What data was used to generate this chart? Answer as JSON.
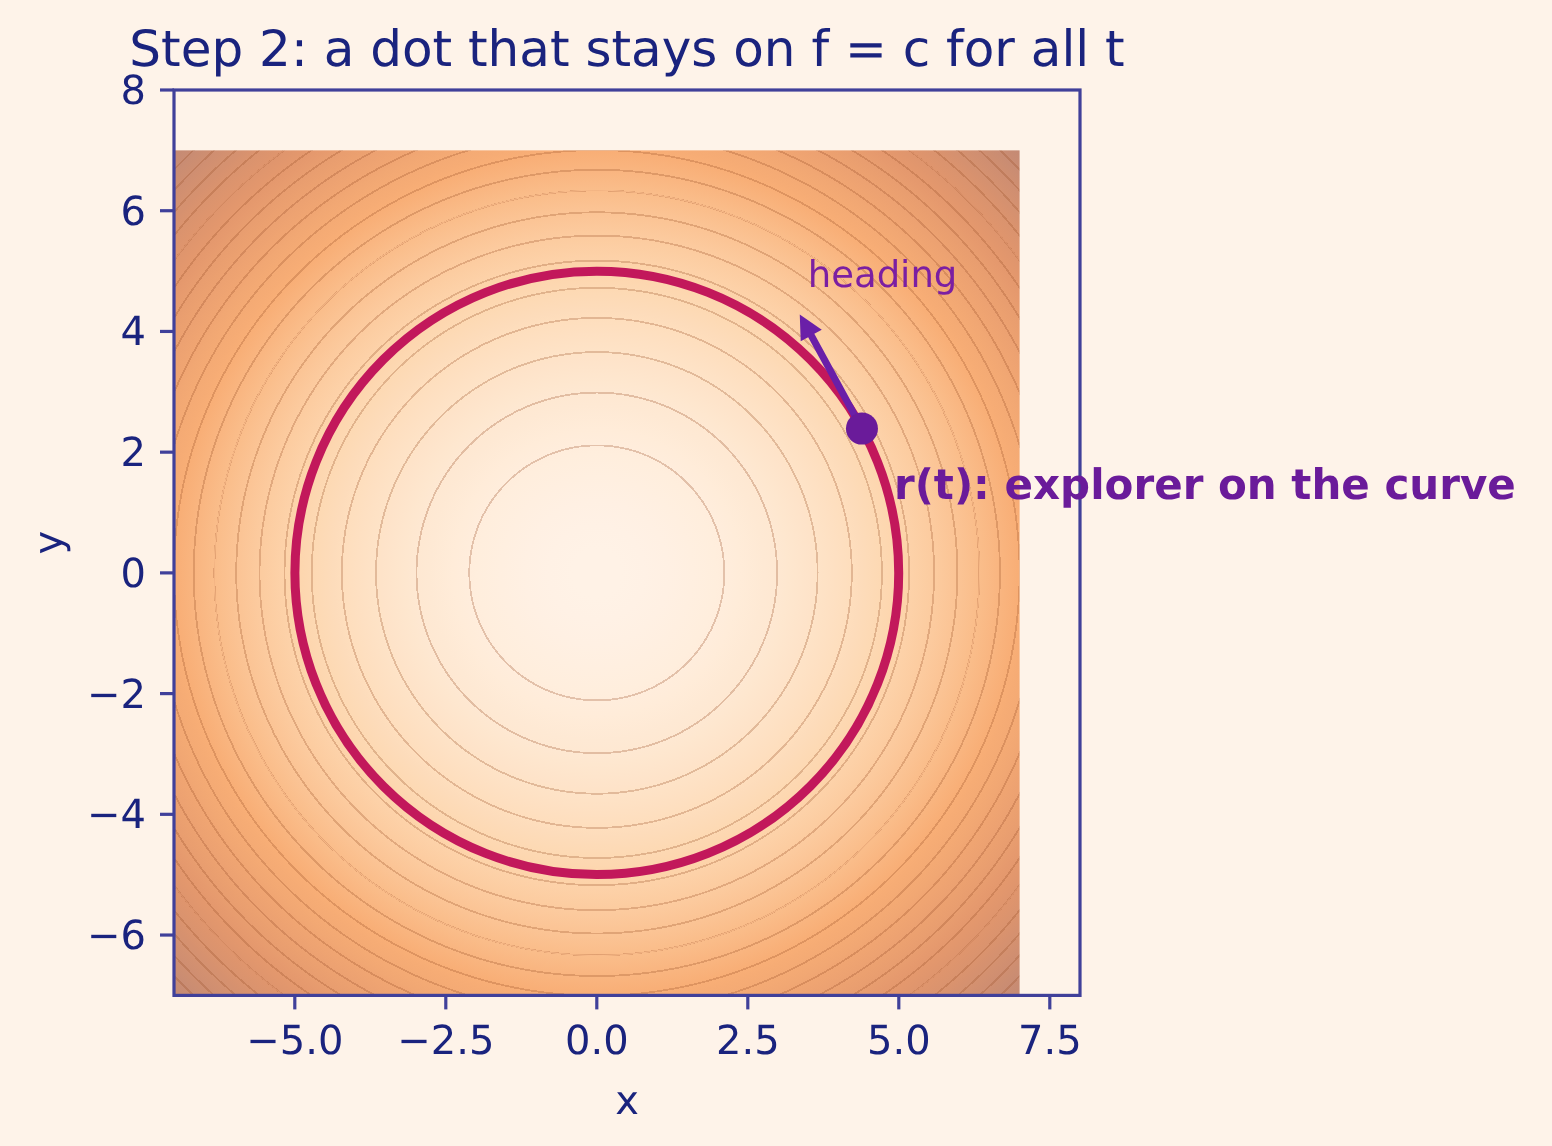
{
  "chart_data": {
    "type": "scatter",
    "title": "Step 2: a dot that stays on f = c for all t",
    "xlabel": "x",
    "ylabel": "y",
    "xlim": [
      -7,
      8
    ],
    "ylim": [
      -7,
      8
    ],
    "xticks": [
      {
        "value": -5,
        "label": "−5.0"
      },
      {
        "value": -2.5,
        "label": "−2.5"
      },
      {
        "value": 0,
        "label": "0.0"
      },
      {
        "value": 2.5,
        "label": "2.5"
      },
      {
        "value": 5,
        "label": "5.0"
      },
      {
        "value": 7.5,
        "label": "7.5"
      }
    ],
    "yticks": [
      -6,
      -4,
      -2,
      0,
      2,
      4,
      6,
      8
    ],
    "marker": "circle",
    "series": [
      {
        "name": "r(t): explorer on the curve",
        "color": "#6a1b9a",
        "x": [
          4.39
        ],
        "values": [
          2.39
        ]
      }
    ],
    "annotations": [
      "heading"
    ]
  }
}
